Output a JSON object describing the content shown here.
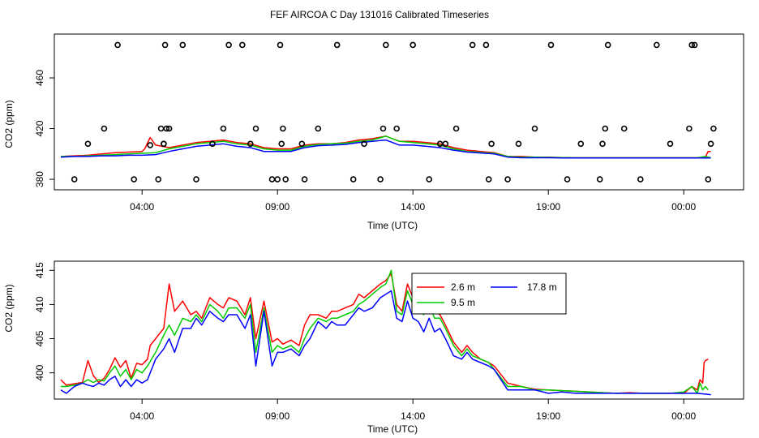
{
  "figure_title": "FEF AIRCOA C  Day 131016  Calibrated Timeseries",
  "colors": {
    "s1": "#ff0000",
    "s2": "#00cc00",
    "s3": "#0000ff",
    "axis": "#000000"
  },
  "chart_data": [
    {
      "type": "line",
      "panel": "top",
      "xlabel": "Time (UTC)",
      "ylabel": "CO2 (ppm)",
      "xlim": [
        0,
        25
      ],
      "ylim": [
        373,
        492
      ],
      "xticks": [
        3,
        8,
        13,
        18,
        23
      ],
      "xtick_labels": [
        "04:00",
        "09:00",
        "14:00",
        "19:00",
        "00:00"
      ],
      "yticks": [
        380,
        420,
        460
      ],
      "ytick_labels": [
        "380",
        "420",
        "460"
      ],
      "reference_points": {
        "name": "calibration standards (circles)",
        "x": [
          0.5,
          1.0,
          1.6,
          2.1,
          2.7,
          3.3,
          3.6,
          3.7,
          3.8,
          3.8,
          3.85,
          3.9,
          4.0,
          4.5,
          5.0,
          5.6,
          6.0,
          6.2,
          6.7,
          7.0,
          7.2,
          7.8,
          8.0,
          8.1,
          8.15,
          8.2,
          8.3,
          8.9,
          9.0,
          9.5,
          10.2,
          10.8,
          11.2,
          11.8,
          11.9,
          12.0,
          12.4,
          13.0,
          13.6,
          14.0,
          14.2,
          14.6,
          15.2,
          15.7,
          15.8,
          15.9,
          16.5,
          16.9,
          17.5,
          18.1,
          18.7,
          19.2,
          19.9,
          20.0,
          20.1,
          20.2,
          20.8,
          21.4,
          22.0,
          22.5,
          23.2,
          23.3,
          23.4,
          23.9,
          24.0,
          24.1
        ],
        "y": [
          380,
          408,
          420,
          486,
          380,
          407,
          380,
          420,
          408,
          408,
          486,
          420,
          420,
          486,
          380,
          408,
          420,
          486,
          486,
          408,
          420,
          380,
          380,
          486,
          408,
          420,
          380,
          408,
          380,
          420,
          486,
          380,
          408,
          380,
          420,
          486,
          420,
          486,
          380,
          408,
          408,
          420,
          486,
          486,
          380,
          408,
          380,
          408,
          420,
          486,
          380,
          408,
          380,
          408,
          420,
          486,
          420,
          380,
          486,
          408,
          420,
          486,
          486,
          380,
          408,
          420
        ]
      },
      "series": [
        {
          "name": "2.6 m",
          "x": [
            0.0,
            0.5,
            1.0,
            1.5,
            2.0,
            2.5,
            3.0,
            3.1,
            3.3,
            3.5,
            4.0,
            4.5,
            5.0,
            5.5,
            6.0,
            6.5,
            7.0,
            7.5,
            8.0,
            8.5,
            9.0,
            9.5,
            10.0,
            10.5,
            11.0,
            11.5,
            12.0,
            12.5,
            13.0,
            13.5,
            14.0,
            14.5,
            15.0,
            16.0,
            16.5,
            17.0,
            17.5,
            18.0,
            18.5,
            19.0,
            19.5,
            20.0,
            20.5,
            21.0,
            21.5,
            22.0,
            22.5,
            23.0,
            23.5,
            23.8,
            23.9,
            24.0
          ],
          "values": [
            398,
            398.5,
            399,
            400,
            401,
            401.5,
            402,
            404,
            413,
            407,
            405,
            407,
            409,
            410,
            411,
            409,
            408,
            405,
            404,
            404,
            407,
            408,
            408,
            409,
            411,
            412,
            414,
            410,
            410,
            409,
            408,
            405,
            403,
            401,
            398,
            398,
            397.5,
            397.5,
            397.2,
            397,
            397,
            397,
            397,
            397,
            397,
            397,
            397,
            397,
            397,
            397.5,
            402,
            402
          ]
        },
        {
          "name": "9.5 m",
          "x": [
            0.0,
            0.5,
            1.0,
            1.5,
            2.0,
            2.5,
            3.0,
            3.5,
            4.0,
            4.5,
            5.0,
            5.5,
            6.0,
            6.5,
            7.0,
            7.5,
            8.0,
            8.5,
            9.0,
            9.5,
            10.0,
            10.5,
            11.0,
            11.5,
            12.0,
            12.5,
            13.0,
            13.5,
            14.0,
            14.5,
            15.0,
            16.0,
            16.5,
            17.0,
            17.5,
            18.0,
            18.5,
            19.0,
            19.5,
            20.0,
            20.5,
            21.0,
            21.5,
            22.0,
            22.5,
            23.0,
            23.5,
            23.8,
            24.0
          ],
          "values": [
            398,
            398,
            398.5,
            399,
            399.5,
            400,
            400.5,
            401,
            404,
            406,
            408,
            409,
            410,
            408,
            407,
            404,
            403,
            403,
            406,
            407.5,
            408,
            408.5,
            410,
            411,
            414,
            410,
            409,
            408,
            407,
            404,
            402,
            400.5,
            398,
            397.5,
            397.5,
            397.3,
            397.2,
            397,
            397,
            397,
            397,
            397,
            397,
            397,
            397,
            397,
            397,
            398,
            397
          ]
        },
        {
          "name": "17.8 m",
          "x": [
            0.0,
            0.5,
            1.0,
            1.5,
            2.0,
            2.5,
            3.0,
            3.5,
            4.0,
            4.5,
            5.0,
            5.5,
            6.0,
            6.5,
            7.0,
            7.5,
            8.0,
            8.5,
            9.0,
            9.5,
            10.0,
            10.5,
            11.0,
            11.5,
            12.0,
            12.5,
            13.0,
            13.5,
            14.0,
            14.5,
            15.0,
            16.0,
            16.5,
            17.0,
            17.5,
            18.0,
            18.5,
            19.0,
            19.5,
            20.0,
            20.5,
            21.0,
            21.5,
            22.0,
            22.5,
            23.0,
            23.5,
            24.0
          ],
          "values": [
            397.5,
            398,
            398,
            398.5,
            398.5,
            399,
            399,
            399.5,
            402,
            404,
            406,
            407,
            408,
            406,
            405,
            402,
            402,
            402,
            405,
            406.5,
            407,
            407.5,
            409,
            410,
            411,
            407,
            407,
            406,
            405,
            403,
            401.5,
            400,
            397.5,
            397,
            397,
            397,
            396.8,
            396.8,
            396.8,
            396.8,
            396.8,
            396.8,
            396.8,
            396.8,
            396.8,
            396.8,
            396.8,
            396.8
          ]
        }
      ]
    },
    {
      "type": "line",
      "panel": "bottom",
      "xlabel": "Time (UTC)",
      "ylabel": "CO2 (ppm)",
      "xlim": [
        0,
        25
      ],
      "ylim": [
        396.4,
        416.1
      ],
      "xticks": [
        3,
        8,
        13,
        18,
        23
      ],
      "xtick_labels": [
        "04:00",
        "09:00",
        "14:00",
        "19:00",
        "00:00"
      ],
      "yticks": [
        400,
        405,
        410,
        415
      ],
      "ytick_labels": [
        "400",
        "405",
        "410",
        "415"
      ],
      "legend": {
        "position": "top-right",
        "entries": [
          "2.6 m",
          "9.5 m",
          "17.8 m"
        ]
      },
      "series": [
        {
          "name": "2.6 m",
          "x": [
            0.0,
            0.2,
            0.5,
            0.8,
            1.0,
            1.2,
            1.4,
            1.6,
            1.8,
            2.0,
            2.2,
            2.4,
            2.6,
            2.8,
            3.0,
            3.1,
            3.2,
            3.3,
            3.5,
            3.8,
            4.0,
            4.2,
            4.5,
            4.8,
            5.0,
            5.2,
            5.5,
            5.8,
            6.0,
            6.2,
            6.5,
            6.8,
            7.0,
            7.2,
            7.5,
            7.8,
            8.0,
            8.2,
            8.5,
            8.8,
            9.0,
            9.2,
            9.5,
            9.8,
            10.0,
            10.2,
            10.5,
            10.8,
            11.0,
            11.2,
            11.5,
            11.8,
            12.0,
            12.2,
            12.4,
            12.6,
            12.8,
            13.0,
            13.2,
            13.4,
            13.6,
            13.8,
            14.0,
            14.2,
            14.5,
            14.8,
            15.0,
            15.2,
            15.5,
            15.8,
            16.0,
            16.5,
            17.0,
            17.5,
            18.0,
            18.5,
            19.0,
            19.5,
            20.0,
            20.5,
            21.0,
            21.5,
            22.0,
            22.5,
            23.0,
            23.3,
            23.5,
            23.6,
            23.7,
            23.75,
            23.8,
            23.9
          ],
          "values": [
            399,
            398.2,
            398.4,
            398.6,
            401.8,
            399.6,
            398.6,
            399.2,
            400.5,
            402.2,
            400.8,
            401.8,
            399.2,
            401.4,
            401.2,
            401.6,
            402.0,
            404.0,
            405.0,
            406.5,
            413.0,
            409.0,
            410.5,
            408.5,
            409.0,
            408.0,
            411.0,
            410.0,
            409.5,
            411.0,
            410.5,
            408.5,
            411.0,
            405.0,
            410.5,
            404.5,
            405.0,
            404.2,
            404.8,
            404.0,
            407.0,
            408.5,
            408.5,
            408.0,
            409.0,
            409.0,
            409.5,
            410.0,
            411.5,
            411.0,
            412.0,
            413.0,
            413.5,
            414.5,
            410.0,
            409.0,
            413.0,
            411.0,
            410.5,
            409.5,
            411.0,
            409.0,
            408.5,
            407.0,
            404.5,
            403.0,
            404.0,
            403.0,
            402.0,
            401.5,
            401.0,
            398.5,
            398.0,
            397.6,
            397.5,
            397.4,
            397.3,
            397.2,
            397.1,
            397.0,
            397.1,
            397.0,
            397.0,
            397.0,
            397.0,
            398.0,
            397.5,
            399.0,
            398.5,
            401.5,
            401.8,
            402.0
          ]
        },
        {
          "name": "9.5 m",
          "x": [
            0.0,
            0.2,
            0.5,
            0.8,
            1.0,
            1.2,
            1.4,
            1.6,
            1.8,
            2.0,
            2.2,
            2.4,
            2.6,
            2.8,
            3.0,
            3.2,
            3.5,
            3.8,
            4.0,
            4.2,
            4.5,
            4.8,
            5.0,
            5.2,
            5.5,
            5.8,
            6.0,
            6.2,
            6.5,
            6.8,
            7.0,
            7.2,
            7.5,
            7.8,
            8.0,
            8.2,
            8.5,
            8.8,
            9.0,
            9.2,
            9.5,
            9.8,
            10.0,
            10.2,
            10.5,
            10.8,
            11.0,
            11.2,
            11.5,
            11.8,
            12.0,
            12.2,
            12.4,
            12.6,
            12.8,
            13.0,
            13.2,
            13.4,
            13.6,
            13.8,
            14.0,
            14.2,
            14.5,
            14.8,
            15.0,
            15.2,
            15.5,
            15.8,
            16.0,
            16.5,
            17.0,
            17.5,
            18.0,
            18.5,
            19.0,
            19.5,
            20.0,
            20.5,
            21.0,
            21.5,
            22.0,
            22.5,
            23.0,
            23.3,
            23.5,
            23.6,
            23.7,
            23.8,
            23.9
          ],
          "values": [
            398,
            398.0,
            398.2,
            398.5,
            399.0,
            398.6,
            399.0,
            398.8,
            400.0,
            401.0,
            399.5,
            400.5,
            399.0,
            400.5,
            400.0,
            401.0,
            403.0,
            405.5,
            407.0,
            405.5,
            408.0,
            407.5,
            408.5,
            407.5,
            410.0,
            409.0,
            408.0,
            409.5,
            409.5,
            408.0,
            410.0,
            403.0,
            409.5,
            403.0,
            404.0,
            403.5,
            404.0,
            403.0,
            405.0,
            406.5,
            408.0,
            407.5,
            408.0,
            408.0,
            408.5,
            409.0,
            410.0,
            410.5,
            411.5,
            412.5,
            413.0,
            415.0,
            409.0,
            408.5,
            412.0,
            410.0,
            409.5,
            408.5,
            410.0,
            408.0,
            408.0,
            406.5,
            404.0,
            402.5,
            403.5,
            402.5,
            402.0,
            401.5,
            400.5,
            398.0,
            398.0,
            397.5,
            397.5,
            397.4,
            397.3,
            397.2,
            397.1,
            397.0,
            397.0,
            397.0,
            397.0,
            397.0,
            397.2,
            398.0,
            397.0,
            398.5,
            397.5,
            398.0,
            397.5
          ]
        },
        {
          "name": "17.8 m",
          "x": [
            0.0,
            0.2,
            0.5,
            0.8,
            1.0,
            1.2,
            1.4,
            1.6,
            1.8,
            2.0,
            2.2,
            2.4,
            2.6,
            2.8,
            3.0,
            3.2,
            3.5,
            3.8,
            4.0,
            4.2,
            4.5,
            4.8,
            5.0,
            5.2,
            5.5,
            5.8,
            6.0,
            6.2,
            6.5,
            6.8,
            7.0,
            7.2,
            7.5,
            7.8,
            8.0,
            8.2,
            8.5,
            8.8,
            9.0,
            9.2,
            9.5,
            9.8,
            10.0,
            10.2,
            10.5,
            10.8,
            11.0,
            11.2,
            11.5,
            11.8,
            12.0,
            12.2,
            12.4,
            12.6,
            12.8,
            13.0,
            13.2,
            13.4,
            13.6,
            13.8,
            14.0,
            14.2,
            14.5,
            14.8,
            15.0,
            15.2,
            15.5,
            15.8,
            16.0,
            16.5,
            17.0,
            17.5,
            18.0,
            18.5,
            19.0,
            19.5,
            20.0,
            20.5,
            21.0,
            21.5,
            22.0,
            22.5,
            23.0,
            23.5,
            24.0
          ],
          "values": [
            397.5,
            397.0,
            398.0,
            398.5,
            398.2,
            398.0,
            398.5,
            398.2,
            399.0,
            399.5,
            398.0,
            399.0,
            398.0,
            399.0,
            398.5,
            399.0,
            402.0,
            403.5,
            405.0,
            403.0,
            406.5,
            406.5,
            408.0,
            407.0,
            409.0,
            408.0,
            407.5,
            408.5,
            408.5,
            406.5,
            408.5,
            401.0,
            409.0,
            401.0,
            403.0,
            403.0,
            403.5,
            402.5,
            404.0,
            405.0,
            407.5,
            406.5,
            407.5,
            407.0,
            407.0,
            408.5,
            409.5,
            409.0,
            409.5,
            411.0,
            411.5,
            412.0,
            408.0,
            407.5,
            410.5,
            408.0,
            407.5,
            406.0,
            408.0,
            406.0,
            406.5,
            405.0,
            402.5,
            402.0,
            403.0,
            402.0,
            401.5,
            401.0,
            400.5,
            397.5,
            397.5,
            397.5,
            397.0,
            397.2,
            397.0,
            397.0,
            397.0,
            397.0,
            397.0,
            397.0,
            397.0,
            397.0,
            397.0,
            397.0,
            396.8
          ]
        }
      ]
    }
  ]
}
